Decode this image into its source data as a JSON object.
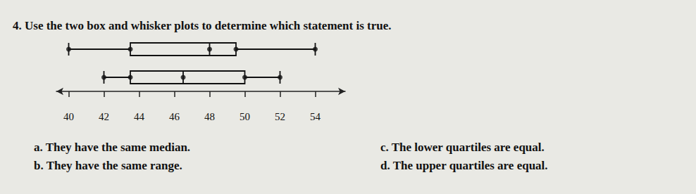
{
  "question": {
    "text": "4. Use the two box and whisker plots to determine which statement is true."
  },
  "chart_data": {
    "type": "boxplot",
    "orientation": "horizontal",
    "color": "#111111",
    "series": [
      {
        "values": [
          40,
          43.5,
          48,
          49.5,
          54
        ]
      },
      {
        "values": [
          42,
          43.5,
          46.5,
          50,
          52
        ]
      }
    ],
    "xlim": [
      39.3,
      55.7
    ],
    "xticks": [
      40,
      42,
      44,
      46,
      48,
      50,
      52,
      54
    ],
    "grid": false,
    "tick_labels": "x"
  },
  "choices": [
    {
      "letter": "a.",
      "text": "They have the same median."
    },
    {
      "letter": "b.",
      "text": "They have the same range."
    },
    {
      "letter": "c.",
      "text": "The lower quartiles are equal."
    },
    {
      "letter": "d.",
      "text": "The upper quartiles are equal."
    }
  ]
}
